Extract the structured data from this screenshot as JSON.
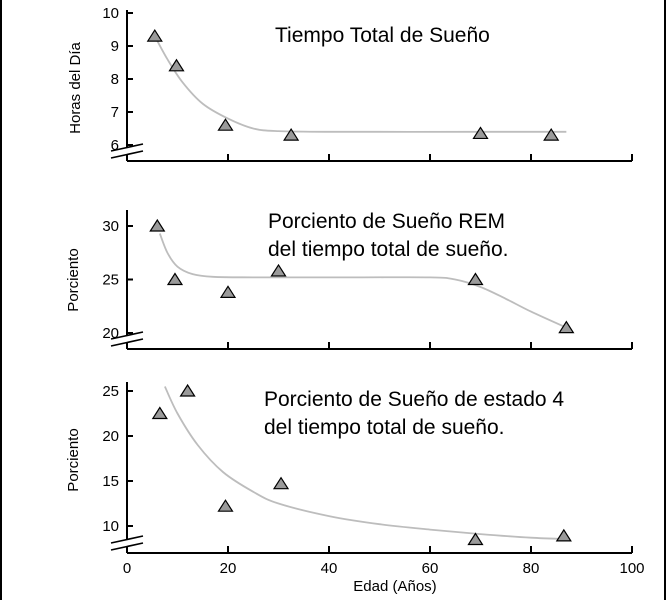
{
  "chart_data": [
    {
      "type": "scatter",
      "title_lines": [
        "Tiempo Total de Sueño"
      ],
      "ylabel": "Horas del Día",
      "ylim": [
        5.5,
        10
      ],
      "yticks": [
        6,
        7,
        8,
        9,
        10
      ],
      "xlim": [
        0,
        100
      ],
      "points": [
        [
          5.5,
          9.3
        ],
        [
          9.8,
          8.4
        ],
        [
          19.5,
          6.6
        ],
        [
          32.5,
          6.3
        ],
        [
          70,
          6.35
        ],
        [
          84,
          6.3
        ]
      ],
      "curve": [
        [
          5.5,
          9.3
        ],
        [
          8,
          8.6
        ],
        [
          11,
          7.9
        ],
        [
          15,
          7.25
        ],
        [
          20,
          6.8
        ],
        [
          25,
          6.5
        ],
        [
          30,
          6.42
        ],
        [
          40,
          6.4
        ],
        [
          70,
          6.4
        ],
        [
          87,
          6.4
        ]
      ]
    },
    {
      "type": "scatter",
      "title_lines": [
        "Porciento de Sueño REM",
        "del tiempo total de sueño."
      ],
      "ylabel": "Porciento",
      "ylim": [
        19,
        31
      ],
      "yticks": [
        20,
        25,
        30
      ],
      "xlim": [
        0,
        100
      ],
      "points": [
        [
          6,
          30
        ],
        [
          9.5,
          25
        ],
        [
          20,
          23.8
        ],
        [
          30,
          25.8
        ],
        [
          69,
          25
        ],
        [
          87,
          20.5
        ]
      ],
      "curve": [
        [
          6.5,
          29.3
        ],
        [
          8,
          27.5
        ],
        [
          10,
          26.2
        ],
        [
          13,
          25.5
        ],
        [
          17,
          25.25
        ],
        [
          25,
          25.2
        ],
        [
          45,
          25.2
        ],
        [
          60,
          25.2
        ],
        [
          65,
          25.0
        ],
        [
          70,
          24.3
        ],
        [
          75,
          23.2
        ],
        [
          80,
          22
        ],
        [
          87,
          20.5
        ]
      ]
    },
    {
      "type": "scatter",
      "title_lines": [
        "Porciento de Sueño de estado 4",
        "del tiempo total de sueño."
      ],
      "ylabel": "Porciento",
      "ylim": [
        8,
        26
      ],
      "yticks": [
        10,
        15,
        20,
        25
      ],
      "xlim": [
        0,
        100
      ],
      "xticks": [
        0,
        20,
        40,
        60,
        80,
        100
      ],
      "xlabel": "Edad (Años)",
      "points": [
        [
          6.5,
          22.5
        ],
        [
          12,
          25
        ],
        [
          19.5,
          12.2
        ],
        [
          30.5,
          14.7
        ],
        [
          69,
          8.5
        ],
        [
          86.5,
          8.9
        ]
      ],
      "curve": [
        [
          7.5,
          25.5
        ],
        [
          10,
          22.5
        ],
        [
          14,
          19
        ],
        [
          19,
          16
        ],
        [
          25,
          13.8
        ],
        [
          30,
          12.5
        ],
        [
          40,
          11.1
        ],
        [
          50,
          10.2
        ],
        [
          60,
          9.6
        ],
        [
          70,
          9.1
        ],
        [
          80,
          8.7
        ],
        [
          87,
          8.55
        ]
      ]
    }
  ]
}
